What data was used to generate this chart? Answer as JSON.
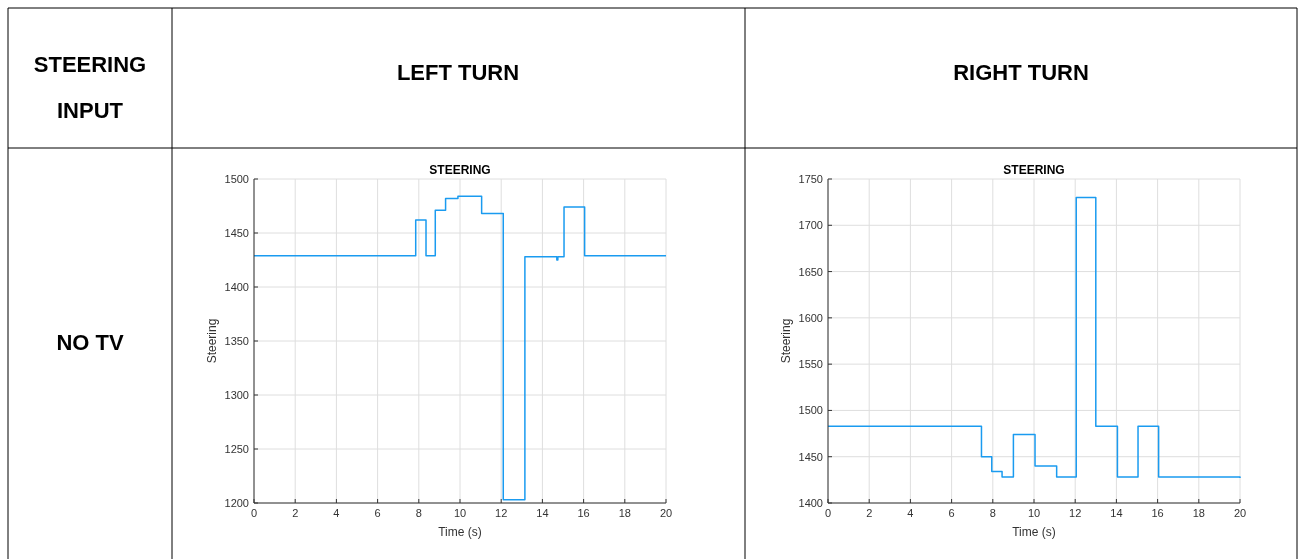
{
  "chart_data": [
    {
      "type": "other",
      "annotations": [
        "STEERING INPUT",
        "NO TV"
      ]
    },
    {
      "type": "step",
      "title": "STEERING",
      "xlabel": "Time (s)",
      "ylabel": "Steering",
      "annotations": [
        "LEFT TURN"
      ],
      "grid": true,
      "xlim": [
        0,
        20
      ],
      "xticks": [
        0,
        2,
        4,
        6,
        8,
        10,
        12,
        14,
        16,
        18,
        20
      ],
      "ylim": [
        1200,
        1500
      ],
      "yticks": [
        1200,
        1250,
        1300,
        1350,
        1400,
        1450,
        1500
      ],
      "x": [
        0,
        7.85,
        8.35,
        8.8,
        9.3,
        9.9,
        11.05,
        12.1,
        13.15,
        14.7,
        14.75,
        15.05,
        16.05,
        20
      ],
      "series": [
        {
          "color": "#1a9bf0",
          "values": [
            1429,
            1462,
            1429,
            1471,
            1482,
            1484,
            1468,
            1203,
            1428,
            1425,
            1428,
            1474,
            1429,
            1429
          ]
        }
      ]
    },
    {
      "type": "step",
      "title": "STEERING",
      "xlabel": "Time (s)",
      "ylabel": "Steering",
      "annotations": [
        "RIGHT TURN"
      ],
      "grid": true,
      "xlim": [
        0,
        20
      ],
      "xticks": [
        0,
        2,
        4,
        6,
        8,
        10,
        12,
        14,
        16,
        18,
        20
      ],
      "ylim": [
        1400,
        1750
      ],
      "yticks": [
        1400,
        1450,
        1500,
        1550,
        1600,
        1650,
        1700,
        1750
      ],
      "x": [
        0,
        7.45,
        7.95,
        8.45,
        9.0,
        10.05,
        11.1,
        12.05,
        13.0,
        14.05,
        15.05,
        16.05,
        20
      ],
      "series": [
        {
          "color": "#1a9bf0",
          "values": [
            1483,
            1450,
            1434,
            1428,
            1474,
            1440,
            1428,
            1730,
            1483,
            1428,
            1483,
            1428,
            1427
          ]
        }
      ]
    }
  ]
}
